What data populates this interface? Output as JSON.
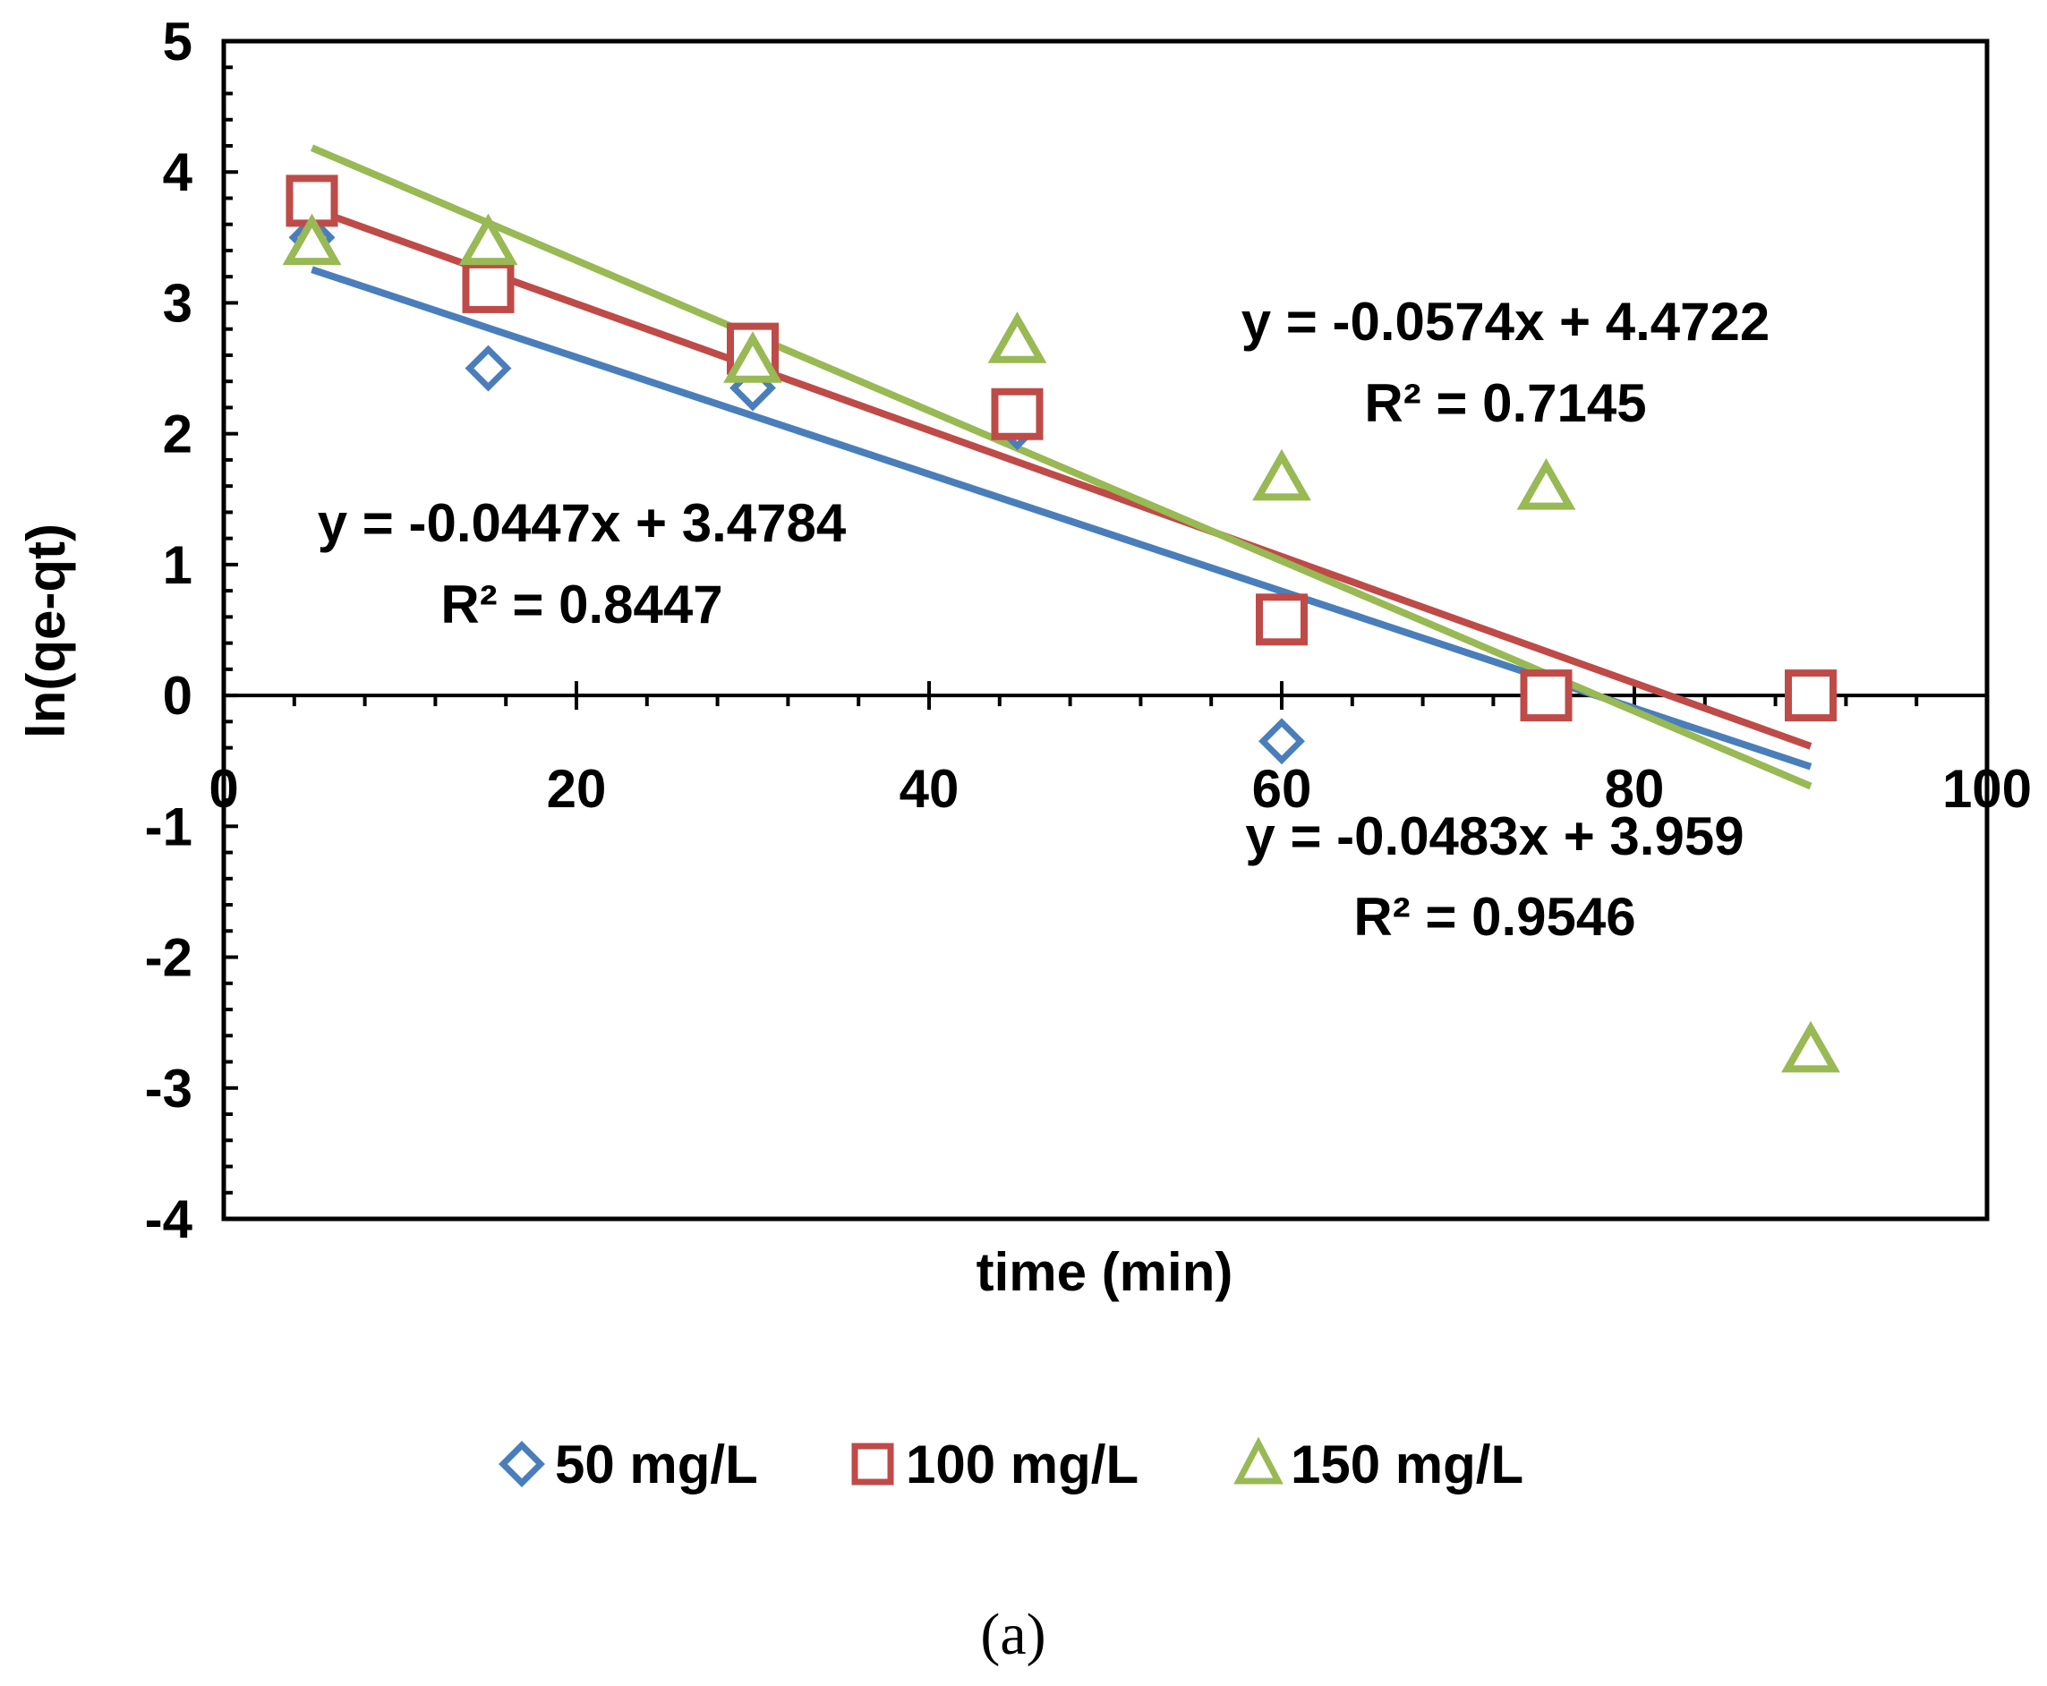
{
  "chart_data": {
    "type": "scatter",
    "title": "",
    "xlabel": "time (min)",
    "ylabel": "ln(qe-qt)",
    "xlim": [
      0,
      100
    ],
    "ylim": [
      -4,
      5
    ],
    "x_ticks": [
      "0",
      "20",
      "40",
      "60",
      "80",
      "100"
    ],
    "y_ticks": [
      "-4",
      "-3",
      "-2",
      "-1",
      "0",
      "1",
      "2",
      "3",
      "4",
      "5"
    ],
    "grid": false,
    "legend_position": "bottom",
    "series": [
      {
        "name": "50 mg/L",
        "marker": "diamond",
        "color": "#4a7ebb",
        "x": [
          5,
          15,
          30,
          45,
          60
        ],
        "y": [
          3.5,
          2.5,
          2.35,
          2.05,
          -0.35
        ],
        "trendline": {
          "slope": -0.0447,
          "intercept": 3.4784,
          "x_range": [
            5,
            90
          ]
        }
      },
      {
        "name": "100 mg/L",
        "marker": "square",
        "color": "#be4b48",
        "x": [
          5,
          15,
          30,
          45,
          60,
          75,
          90
        ],
        "y": [
          3.78,
          3.12,
          2.65,
          2.15,
          0.58,
          0.0,
          0.0
        ],
        "trendline": {
          "slope": -0.0483,
          "intercept": 3.959,
          "x_range": [
            5,
            90
          ]
        }
      },
      {
        "name": "150 mg/L",
        "marker": "triangle",
        "color": "#98b954",
        "x": [
          5,
          15,
          30,
          45,
          60,
          75,
          90
        ],
        "y": [
          3.45,
          3.45,
          2.55,
          2.7,
          1.65,
          1.58,
          -2.72
        ],
        "trendline": {
          "slope": -0.0574,
          "intercept": 4.4722,
          "x_range": [
            5,
            90
          ]
        }
      }
    ],
    "annotations": [
      {
        "eq": "y = -0.0447x + 3.4784",
        "r2": "R² = 0.8447"
      },
      {
        "eq": "y = -0.0574x + 4.4722",
        "r2": "R² = 0.7145"
      },
      {
        "eq": "y = -0.0483x + 3.959",
        "r2": "R² = 0.9546"
      }
    ]
  },
  "caption": "(a)"
}
